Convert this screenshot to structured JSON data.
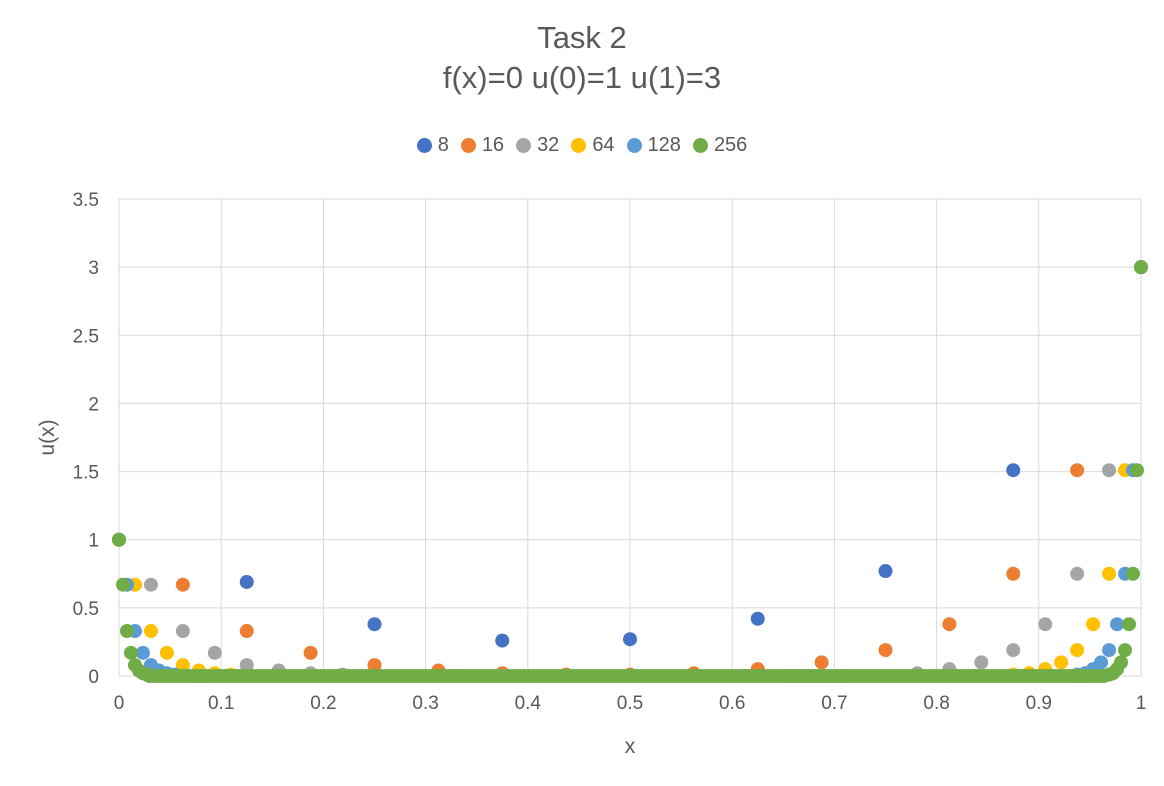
{
  "chart_data": {
    "type": "scatter",
    "title": "Task 2",
    "subtitle": "f(x)=0 u(0)=1 u(1)=3",
    "xlabel": "x",
    "ylabel": "u(x)",
    "xlim": [
      0,
      1
    ],
    "ylim": [
      0,
      3.5
    ],
    "x_ticks": [
      "0",
      "0.1",
      "0.2",
      "0.3",
      "0.4",
      "0.5",
      "0.6",
      "0.7",
      "0.8",
      "0.9",
      "1"
    ],
    "y_ticks": [
      "0",
      "0.5",
      "1",
      "1.5",
      "2",
      "2.5",
      "3",
      "3.5"
    ],
    "grid": true,
    "legend_position": "top",
    "series": [
      {
        "name": "8",
        "color": "#4472C4",
        "x": [
          0,
          0.125,
          0.25,
          0.375,
          0.5,
          0.625,
          0.75,
          0.875,
          1
        ],
        "y": [
          1,
          0.69,
          0.38,
          0.26,
          0.27,
          0.42,
          0.77,
          1.51,
          3
        ]
      },
      {
        "name": "16",
        "color": "#ED7D31",
        "x": [
          0,
          0.0625,
          0.125,
          0.1875,
          0.25,
          0.3125,
          0.375,
          0.4375,
          0.5,
          0.5625,
          0.625,
          0.6875,
          0.75,
          0.8125,
          0.875,
          0.9375,
          1
        ],
        "y": [
          1,
          0.67,
          0.33,
          0.17,
          0.08,
          0.04,
          0.02,
          0.01,
          0.01,
          0.02,
          0.05,
          0.1,
          0.19,
          0.38,
          0.75,
          1.51,
          3
        ]
      },
      {
        "name": "32",
        "color": "#A5A5A5",
        "x": [
          0,
          0.03125,
          0.0625,
          0.09375,
          0.125,
          0.15625,
          0.1875,
          0.21875,
          0.78125,
          0.8125,
          0.84375,
          0.875,
          0.90625,
          0.9375,
          0.96875,
          1
        ],
        "y": [
          1,
          0.67,
          0.33,
          0.17,
          0.08,
          0.04,
          0.02,
          0.01,
          0.02,
          0.05,
          0.1,
          0.19,
          0.38,
          0.75,
          1.51,
          3
        ]
      },
      {
        "name": "64",
        "color": "#FFC000",
        "x": [
          0,
          0.015625,
          0.03125,
          0.046875,
          0.0625,
          0.078125,
          0.09375,
          0.109375,
          0.875,
          0.890625,
          0.90625,
          0.921875,
          0.9375,
          0.953125,
          0.96875,
          0.984375,
          1
        ],
        "y": [
          1,
          0.67,
          0.33,
          0.17,
          0.08,
          0.04,
          0.02,
          0.01,
          0.01,
          0.02,
          0.05,
          0.1,
          0.19,
          0.38,
          0.75,
          1.51,
          3
        ]
      },
      {
        "name": "128",
        "color": "#5B9BD5",
        "x": [
          0,
          0.0078125,
          0.015625,
          0.0234375,
          0.03125,
          0.0390625,
          0.046875,
          0.0546875,
          0.9375,
          0.9453125,
          0.953125,
          0.9609375,
          0.96875,
          0.9765625,
          0.984375,
          0.9921875,
          1
        ],
        "y": [
          1,
          0.67,
          0.33,
          0.17,
          0.08,
          0.04,
          0.02,
          0.01,
          0.01,
          0.02,
          0.05,
          0.1,
          0.19,
          0.38,
          0.75,
          1.51,
          3
        ]
      },
      {
        "name": "256",
        "color": "#70AD47",
        "x": [
          0,
          0.00390625,
          0.0078125,
          0.01171875,
          0.015625,
          0.01953125,
          0.0234375,
          0.02734375,
          0.96875,
          0.97265625,
          0.9765625,
          0.98046875,
          0.984375,
          0.98828125,
          0.9921875,
          0.99609375,
          1
        ],
        "y": [
          1,
          0.67,
          0.33,
          0.17,
          0.08,
          0.04,
          0.02,
          0.01,
          0.01,
          0.02,
          0.05,
          0.1,
          0.19,
          0.38,
          0.75,
          1.51,
          3
        ],
        "note_dense_zero_segment": [
          0.03,
          0.965
        ]
      }
    ]
  }
}
